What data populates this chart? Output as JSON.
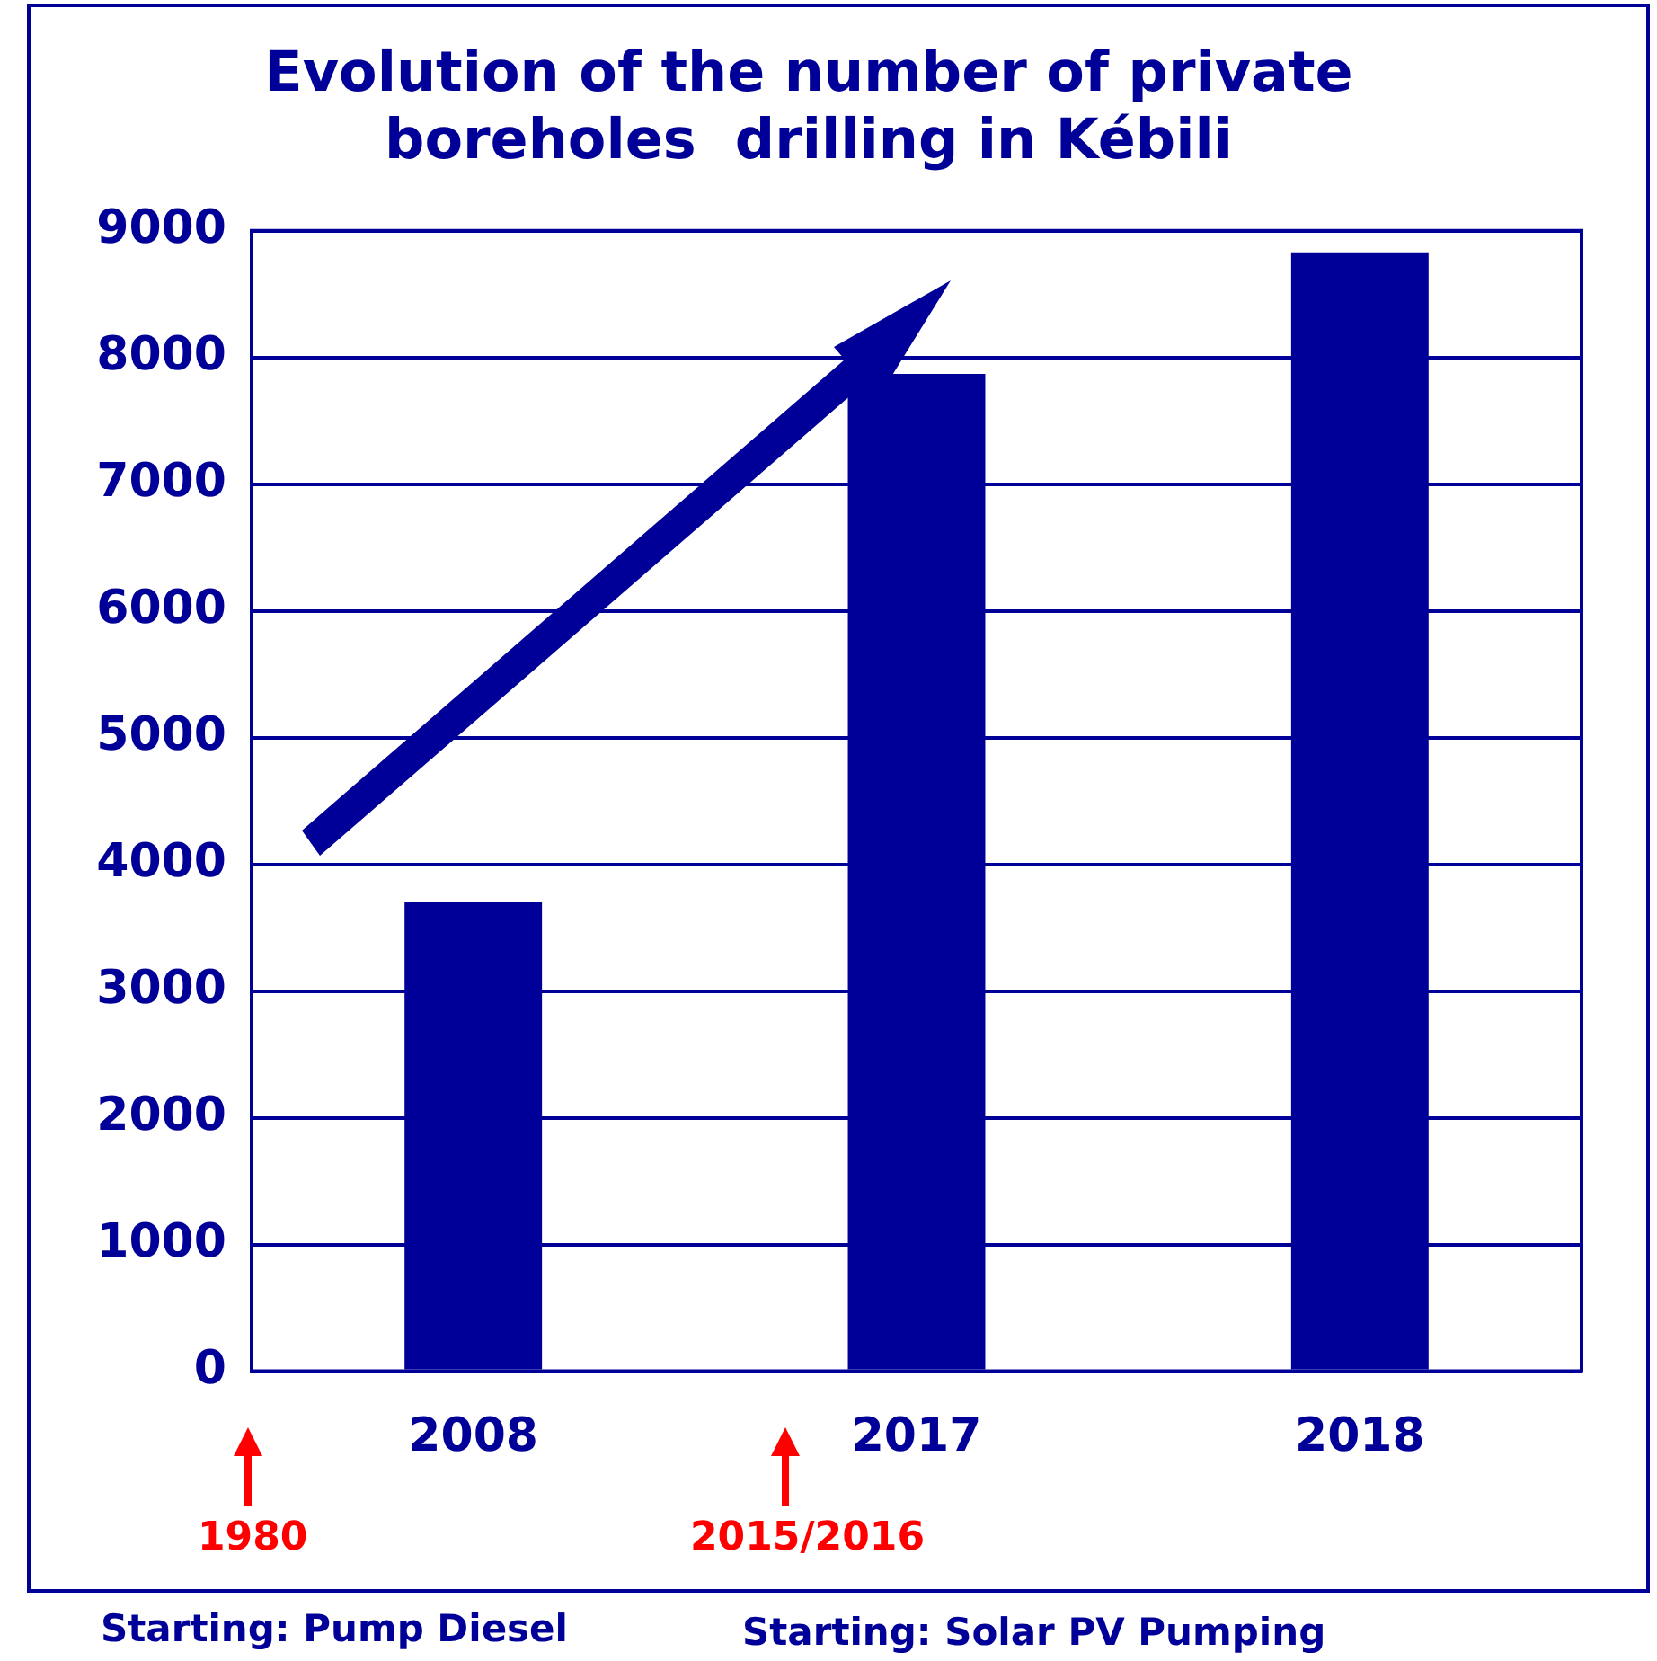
{
  "chart_data": {
    "type": "bar",
    "title": "Evolution of the number of private boreholes  drilling in Kébili",
    "categories": [
      "2008",
      "2017",
      "2018"
    ],
    "values": [
      3700,
      7870,
      8830
    ],
    "color": "#000099",
    "ylim": [
      0,
      9000
    ],
    "yticks": [
      0,
      1000,
      2000,
      3000,
      4000,
      5000,
      6000,
      7000,
      8000,
      9000
    ],
    "grid": "y",
    "annotations": [
      "1980",
      "2015/2016",
      "Starting: Pump Diesel",
      "Starting: Solar PV Pumping"
    ]
  }
}
